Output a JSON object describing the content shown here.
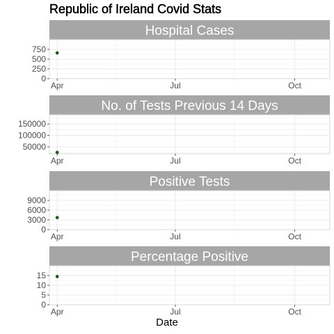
{
  "chart_data": {
    "type": "scatter",
    "title": "Republic of Ireland Covid Stats",
    "xlabel": "Date",
    "x_ticks": [
      "Apr",
      "Jul",
      "Oct"
    ],
    "x_range": [
      "2020-03-26",
      "2020-10-28"
    ],
    "x_tick_dates": [
      "2020-04-01",
      "2020-07-01",
      "2020-10-01"
    ],
    "point_color": "#1a5e1a",
    "strip_color": "#a6a6a6",
    "grid": true,
    "panels": [
      {
        "name": "Hospital Cases",
        "yticks": [
          "0",
          "250",
          "500",
          "750"
        ],
        "ylim": [
          0,
          1000
        ],
        "points": [
          {
            "x": "2020-04-01",
            "y": 660
          }
        ]
      },
      {
        "name": "No. of Tests Previous 14 Days",
        "yticks": [
          "50000",
          "100000",
          "150000"
        ],
        "ylim": [
          20000,
          190000
        ],
        "points": [
          {
            "x": "2020-04-01",
            "y": 26000
          }
        ]
      },
      {
        "name": "Positive Tests",
        "yticks": [
          "0",
          "3000",
          "6000",
          "9000"
        ],
        "ylim": [
          0,
          12000
        ],
        "points": [
          {
            "x": "2020-04-01",
            "y": 3700
          }
        ]
      },
      {
        "name": "Percentage Positive",
        "yticks": [
          "0",
          "5",
          "10",
          "15"
        ],
        "ylim": [
          0,
          20
        ],
        "points": [
          {
            "x": "2020-04-01",
            "y": 14.5
          }
        ]
      }
    ]
  }
}
